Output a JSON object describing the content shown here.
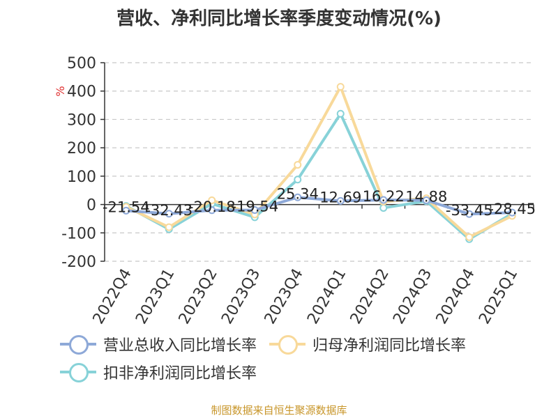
{
  "title": "营收、净利同比增长率季度变动情况(%)",
  "source": "制图数据来自恒生聚源数据库",
  "chart_data": {
    "type": "line",
    "title": "营收、净利同比增长率季度变动情况(%)",
    "ylabel": "%",
    "ylim": [
      -200,
      500
    ],
    "yticks": [
      "500",
      "400",
      "300",
      "200",
      "100",
      "0",
      "-100",
      "-200"
    ],
    "grid": true,
    "legend_position": "bottom",
    "categories": [
      "2022Q4",
      "2023Q1",
      "2023Q2",
      "2023Q3",
      "2023Q4",
      "2024Q1",
      "2024Q2",
      "2024Q3",
      "2024Q4",
      "2025Q1"
    ],
    "series": [
      {
        "name": "营业总收入同比增长率",
        "color": "#8ea9d8",
        "values": [
          -21.54,
          -32.43,
          -20.18,
          -19.54,
          25.34,
          12.69,
          16.22,
          14.88,
          -33.45,
          -28.45
        ],
        "labels": [
          "-21.54",
          "-32.43",
          "-20.18",
          "-19.54",
          "25.34",
          "12.69",
          "16.22",
          "14.88",
          "-33.45",
          "-28.45"
        ]
      },
      {
        "name": "归母净利润同比增长率",
        "color": "#f8d99a",
        "values": [
          -8,
          -80,
          15,
          -35,
          140,
          415,
          10,
          22,
          -115,
          -40
        ]
      },
      {
        "name": "扣非净利润同比增长率",
        "color": "#87d2d8",
        "values": [
          -5,
          -87,
          3,
          -45,
          88,
          320,
          -12,
          12,
          -122,
          -32
        ]
      }
    ]
  }
}
